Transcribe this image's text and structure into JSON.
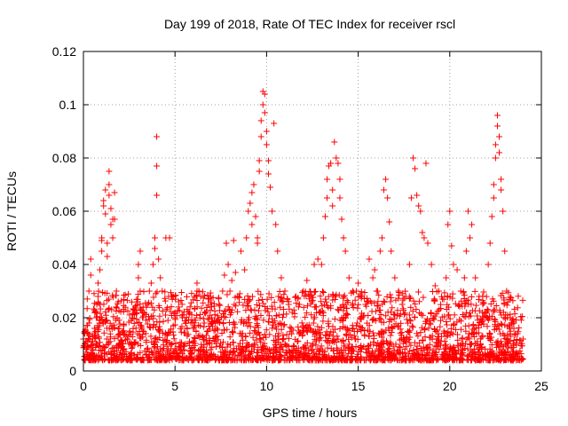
{
  "chart_data": {
    "type": "scatter",
    "title": "Day 199 of 2018, Rate Of TEC Index for receiver rscl",
    "xlabel": "GPS time / hours",
    "ylabel": "ROTI / TECUs",
    "xlim": [
      0,
      25
    ],
    "ylim": [
      0,
      0.12
    ],
    "x_ticks": [
      0,
      5,
      10,
      15,
      20,
      25
    ],
    "x_tick_labels": [
      "0",
      "5",
      "10",
      "15",
      "20",
      "25"
    ],
    "y_ticks": [
      0,
      0.02,
      0.04,
      0.06,
      0.08,
      0.1,
      0.12
    ],
    "y_tick_labels": [
      "0",
      "0.02",
      "0.04",
      "0.06",
      "0.08",
      "0.1",
      "0.12"
    ],
    "grid": true,
    "marker": "+",
    "marker_color": "#ff0000",
    "background_envelope": {
      "description": "dense baseline scatter of ROTI values across the day",
      "x_range": [
        0,
        24
      ],
      "y_range": [
        0.004,
        0.03
      ]
    },
    "series": [
      {
        "name": "rscl",
        "points": [
          [
            0.0,
            0.012
          ],
          [
            0.1,
            0.015
          ],
          [
            0.2,
            0.009
          ],
          [
            0.3,
            0.018
          ],
          [
            0.3,
            0.03
          ],
          [
            0.4,
            0.036
          ],
          [
            0.4,
            0.042
          ],
          [
            0.5,
            0.011
          ],
          [
            0.6,
            0.016
          ],
          [
            0.7,
            0.02
          ],
          [
            0.8,
            0.028
          ],
          [
            0.8,
            0.033
          ],
          [
            0.9,
            0.038
          ],
          [
            1.0,
            0.045
          ],
          [
            1.0,
            0.049
          ],
          [
            1.0,
            0.05
          ],
          [
            1.1,
            0.064
          ],
          [
            1.1,
            0.062
          ],
          [
            1.2,
            0.068
          ],
          [
            1.2,
            0.059
          ],
          [
            1.3,
            0.048
          ],
          [
            1.3,
            0.043
          ],
          [
            1.4,
            0.066
          ],
          [
            1.4,
            0.07
          ],
          [
            1.4,
            0.075
          ],
          [
            1.5,
            0.061
          ],
          [
            1.5,
            0.055
          ],
          [
            1.6,
            0.057
          ],
          [
            1.6,
            0.05
          ],
          [
            1.7,
            0.067
          ],
          [
            1.7,
            0.057
          ],
          [
            1.8,
            0.03
          ],
          [
            1.9,
            0.026
          ],
          [
            2.0,
            0.014
          ],
          [
            2.2,
            0.017
          ],
          [
            2.4,
            0.012
          ],
          [
            2.6,
            0.019
          ],
          [
            2.8,
            0.022
          ],
          [
            3.0,
            0.035
          ],
          [
            3.0,
            0.04
          ],
          [
            3.1,
            0.045
          ],
          [
            3.1,
            0.03
          ],
          [
            3.3,
            0.022
          ],
          [
            3.5,
            0.025
          ],
          [
            3.6,
            0.03
          ],
          [
            3.7,
            0.033
          ],
          [
            3.8,
            0.04
          ],
          [
            3.9,
            0.046
          ],
          [
            3.9,
            0.05
          ],
          [
            4.0,
            0.088
          ],
          [
            4.0,
            0.077
          ],
          [
            4.0,
            0.066
          ],
          [
            4.1,
            0.042
          ],
          [
            4.2,
            0.035
          ],
          [
            4.3,
            0.03
          ],
          [
            4.5,
            0.05
          ],
          [
            4.7,
            0.05
          ],
          [
            4.8,
            0.028
          ],
          [
            5.0,
            0.022
          ],
          [
            5.2,
            0.026
          ],
          [
            5.4,
            0.02
          ],
          [
            5.6,
            0.018
          ],
          [
            5.8,
            0.022
          ],
          [
            6.0,
            0.016
          ],
          [
            6.2,
            0.03
          ],
          [
            6.2,
            0.033
          ],
          [
            6.3,
            0.03
          ],
          [
            6.4,
            0.028
          ],
          [
            6.6,
            0.018
          ],
          [
            6.8,
            0.015
          ],
          [
            7.0,
            0.02
          ],
          [
            7.2,
            0.018
          ],
          [
            7.4,
            0.025
          ],
          [
            7.6,
            0.03
          ],
          [
            7.7,
            0.036
          ],
          [
            7.8,
            0.048
          ],
          [
            7.9,
            0.04
          ],
          [
            8.0,
            0.03
          ],
          [
            8.1,
            0.034
          ],
          [
            8.2,
            0.049
          ],
          [
            8.3,
            0.037
          ],
          [
            8.4,
            0.028
          ],
          [
            8.6,
            0.045
          ],
          [
            8.8,
            0.038
          ],
          [
            8.9,
            0.05
          ],
          [
            9.0,
            0.06
          ],
          [
            9.1,
            0.063
          ],
          [
            9.2,
            0.055
          ],
          [
            9.2,
            0.067
          ],
          [
            9.3,
            0.07
          ],
          [
            9.4,
            0.058
          ],
          [
            9.5,
            0.048
          ],
          [
            9.5,
            0.05
          ],
          [
            9.6,
            0.075
          ],
          [
            9.6,
            0.079
          ],
          [
            9.7,
            0.088
          ],
          [
            9.7,
            0.094
          ],
          [
            9.8,
            0.1
          ],
          [
            9.8,
            0.105
          ],
          [
            9.9,
            0.104
          ],
          [
            9.9,
            0.097
          ],
          [
            10.0,
            0.09
          ],
          [
            10.0,
            0.085
          ],
          [
            10.1,
            0.079
          ],
          [
            10.1,
            0.074
          ],
          [
            10.2,
            0.069
          ],
          [
            10.3,
            0.06
          ],
          [
            10.4,
            0.093
          ],
          [
            10.5,
            0.055
          ],
          [
            10.6,
            0.045
          ],
          [
            10.8,
            0.035
          ],
          [
            11.0,
            0.03
          ],
          [
            11.2,
            0.025
          ],
          [
            11.4,
            0.022
          ],
          [
            11.6,
            0.028
          ],
          [
            11.8,
            0.025
          ],
          [
            12.0,
            0.03
          ],
          [
            12.2,
            0.034
          ],
          [
            12.4,
            0.028
          ],
          [
            12.6,
            0.04
          ],
          [
            12.8,
            0.042
          ],
          [
            13.0,
            0.04
          ],
          [
            13.1,
            0.05
          ],
          [
            13.2,
            0.058
          ],
          [
            13.3,
            0.065
          ],
          [
            13.3,
            0.072
          ],
          [
            13.4,
            0.077
          ],
          [
            13.5,
            0.078
          ],
          [
            13.6,
            0.068
          ],
          [
            13.6,
            0.062
          ],
          [
            13.7,
            0.086
          ],
          [
            13.8,
            0.08
          ],
          [
            13.9,
            0.078
          ],
          [
            14.0,
            0.072
          ],
          [
            14.0,
            0.065
          ],
          [
            14.1,
            0.057
          ],
          [
            14.2,
            0.05
          ],
          [
            14.3,
            0.045
          ],
          [
            14.5,
            0.035
          ],
          [
            14.7,
            0.03
          ],
          [
            14.9,
            0.03
          ],
          [
            15.0,
            0.033
          ],
          [
            15.2,
            0.028
          ],
          [
            15.4,
            0.025
          ],
          [
            15.6,
            0.042
          ],
          [
            15.8,
            0.035
          ],
          [
            15.9,
            0.038
          ],
          [
            16.0,
            0.03
          ],
          [
            16.2,
            0.045
          ],
          [
            16.3,
            0.05
          ],
          [
            16.4,
            0.068
          ],
          [
            16.5,
            0.072
          ],
          [
            16.6,
            0.065
          ],
          [
            16.7,
            0.056
          ],
          [
            16.8,
            0.045
          ],
          [
            17.0,
            0.035
          ],
          [
            17.2,
            0.03
          ],
          [
            17.4,
            0.025
          ],
          [
            17.6,
            0.028
          ],
          [
            17.8,
            0.04
          ],
          [
            17.9,
            0.065
          ],
          [
            18.0,
            0.08
          ],
          [
            18.1,
            0.076
          ],
          [
            18.2,
            0.066
          ],
          [
            18.3,
            0.062
          ],
          [
            18.4,
            0.06
          ],
          [
            18.5,
            0.052
          ],
          [
            18.6,
            0.05
          ],
          [
            18.7,
            0.078
          ],
          [
            18.8,
            0.048
          ],
          [
            19.0,
            0.04
          ],
          [
            19.2,
            0.032
          ],
          [
            19.4,
            0.03
          ],
          [
            19.6,
            0.027
          ],
          [
            19.8,
            0.035
          ],
          [
            19.9,
            0.055
          ],
          [
            20.0,
            0.06
          ],
          [
            20.1,
            0.047
          ],
          [
            20.2,
            0.04
          ],
          [
            20.4,
            0.038
          ],
          [
            20.6,
            0.03
          ],
          [
            20.8,
            0.035
          ],
          [
            20.9,
            0.045
          ],
          [
            21.0,
            0.06
          ],
          [
            21.1,
            0.05
          ],
          [
            21.2,
            0.055
          ],
          [
            21.4,
            0.035
          ],
          [
            21.6,
            0.028
          ],
          [
            21.8,
            0.025
          ],
          [
            22.0,
            0.022
          ],
          [
            22.1,
            0.04
          ],
          [
            22.2,
            0.048
          ],
          [
            22.3,
            0.058
          ],
          [
            22.4,
            0.065
          ],
          [
            22.4,
            0.07
          ],
          [
            22.5,
            0.08
          ],
          [
            22.5,
            0.085
          ],
          [
            22.6,
            0.092
          ],
          [
            22.6,
            0.096
          ],
          [
            22.7,
            0.088
          ],
          [
            22.7,
            0.082
          ],
          [
            22.8,
            0.072
          ],
          [
            22.8,
            0.068
          ],
          [
            22.9,
            0.06
          ],
          [
            23.0,
            0.045
          ],
          [
            23.1,
            0.03
          ],
          [
            23.3,
            0.02
          ],
          [
            23.5,
            0.016
          ],
          [
            23.7,
            0.014
          ],
          [
            24.0,
            0.012
          ]
        ]
      }
    ]
  }
}
